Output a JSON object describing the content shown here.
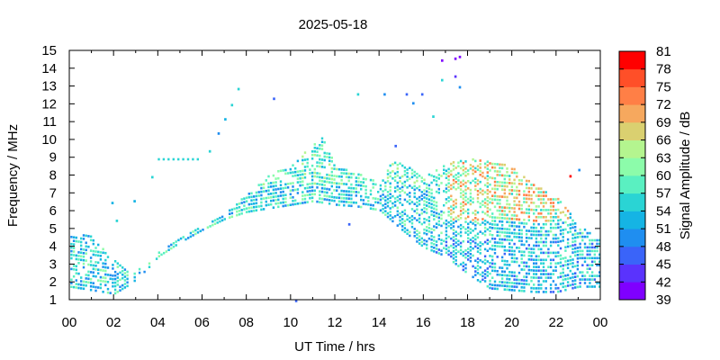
{
  "chart_data": {
    "type": "heatmap",
    "title": "2025-05-18",
    "xlabel": "UT Time / hrs",
    "ylabel": "Frequency / MHz",
    "colorbar_label": "Signal Amplitude / dB",
    "xlim": [
      0,
      24
    ],
    "ylim": [
      1,
      15
    ],
    "x_ticks": [
      "00",
      "02",
      "04",
      "06",
      "08",
      "10",
      "12",
      "14",
      "16",
      "18",
      "20",
      "22",
      "00"
    ],
    "y_ticks": [
      "1",
      "2",
      "3",
      "4",
      "5",
      "6",
      "7",
      "8",
      "9",
      "10",
      "11",
      "12",
      "13",
      "14",
      "15"
    ],
    "colorbar_ticks": [
      "39",
      "42",
      "45",
      "48",
      "51",
      "54",
      "57",
      "60",
      "63",
      "66",
      "69",
      "72",
      "75",
      "78",
      "81"
    ],
    "colorbar_range": [
      39,
      81
    ],
    "colorbar_colors": [
      "#7f00ff",
      "#5a33fd",
      "#3a64f9",
      "#1f8ef0",
      "#15b4e4",
      "#2ad4d4",
      "#5af0c1",
      "#8cfcaa",
      "#b4f58f",
      "#dad070",
      "#f6a85e",
      "#ff7f46",
      "#ff4f28",
      "#ff0000"
    ],
    "grid": false,
    "outlier_points": [
      {
        "t": 7.6,
        "f": 12.9,
        "v": 54
      },
      {
        "t": 7.3,
        "f": 12.0,
        "v": 55
      },
      {
        "t": 7.0,
        "f": 11.2,
        "v": 52
      },
      {
        "t": 6.7,
        "f": 10.4,
        "v": 50
      },
      {
        "t": 9.2,
        "f": 12.35,
        "v": 45
      },
      {
        "t": 13.0,
        "f": 12.6,
        "v": 54
      },
      {
        "t": 14.2,
        "f": 12.6,
        "v": 48
      },
      {
        "t": 15.2,
        "f": 12.6,
        "v": 47
      },
      {
        "t": 15.9,
        "f": 12.6,
        "v": 45
      },
      {
        "t": 15.5,
        "f": 12.1,
        "v": 49
      },
      {
        "t": 16.4,
        "f": 11.35,
        "v": 55
      },
      {
        "t": 16.8,
        "f": 14.5,
        "v": 40
      },
      {
        "t": 17.4,
        "f": 14.6,
        "v": 41
      },
      {
        "t": 17.6,
        "f": 14.7,
        "v": 40
      },
      {
        "t": 17.4,
        "f": 13.6,
        "v": 42
      },
      {
        "t": 16.8,
        "f": 13.4,
        "v": 55
      },
      {
        "t": 17.6,
        "f": 13.0,
        "v": 48
      },
      {
        "t": 22.6,
        "f": 8.0,
        "v": 78
      },
      {
        "t": 23.0,
        "f": 8.35,
        "v": 50
      },
      {
        "t": 14.7,
        "f": 9.7,
        "v": 45
      },
      {
        "t": 6.3,
        "f": 9.4,
        "v": 55
      },
      {
        "t": 10.2,
        "f": 1.0,
        "v": 45
      },
      {
        "t": 12.6,
        "f": 5.3,
        "v": 47
      },
      {
        "t": 2.1,
        "f": 5.5,
        "v": 55
      },
      {
        "t": 1.9,
        "f": 6.5,
        "v": 53
      },
      {
        "t": 2.9,
        "f": 6.6,
        "v": 52
      },
      {
        "t": 3.7,
        "f": 7.95,
        "v": 55
      }
    ]
  }
}
